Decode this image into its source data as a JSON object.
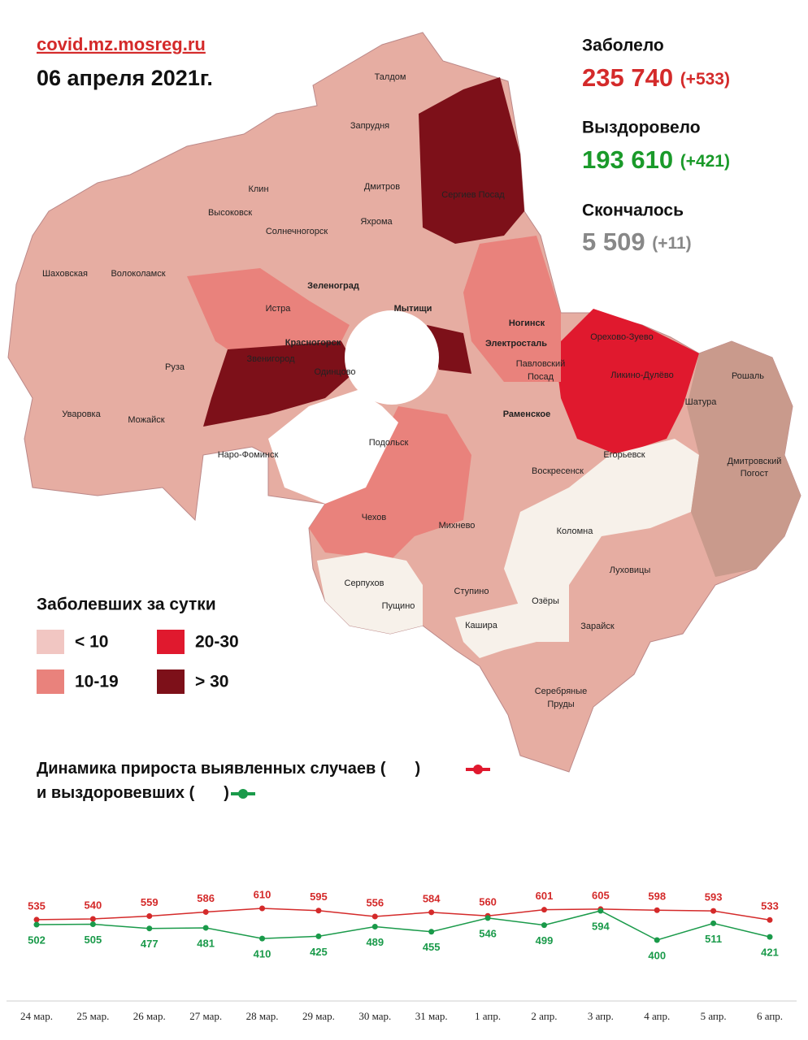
{
  "header": {
    "site": "covid.mz.mosreg.ru",
    "date": "06 апреля 2021г."
  },
  "stats": [
    {
      "label": "Заболело",
      "value": "235 740",
      "delta": "(+533)"
    },
    {
      "label": "Выздоровело",
      "value": "193 610",
      "delta": "(+421)"
    },
    {
      "label": "Скончалось",
      "value": "5 509",
      "delta": "(+11)"
    }
  ],
  "legend": {
    "title": "Заболевших за сутки",
    "items": [
      {
        "label": "< 10",
        "color": "#f1c6c2"
      },
      {
        "label": "20-30",
        "color": "#e0192e"
      },
      {
        "label": "10-19",
        "color": "#e9827c"
      },
      {
        "label": "> 30",
        "color": "#7d1019"
      }
    ]
  },
  "map_labels": [
    "Талдом",
    "Запрудня",
    "Клин",
    "Дмитров",
    "Сергиев Посад",
    "Высоковск",
    "Яхрома",
    "Солнечногорск",
    "Шаховская",
    "Волоколамск",
    "Зеленоград",
    "Истра",
    "Мытищи",
    "Ногинск",
    "Орехово-Зуево",
    "Красногорск",
    "Электросталь",
    "Павловский",
    "Посад",
    "Звенигород",
    "Одинцово",
    "Ликино-Дулёво",
    "Рошаль",
    "Руза",
    "Шатура",
    "Уваровка",
    "Раменское",
    "Можайск",
    "Подольск",
    "Егорьевск",
    "Наро-Фоминск",
    "Дмитровский",
    "Погост",
    "Воскресенск",
    "Чехов",
    "Михнево",
    "Коломна",
    "Луховицы",
    "Серпухов",
    "Пущино",
    "Ступино",
    "Озёры",
    "Кашира",
    "Зарайск",
    "Серебряные",
    "Пруды"
  ],
  "chart_data": {
    "type": "line",
    "title_line1": "Динамика прироста выявленных случаев (",
    "title_line2": "и выздоровевших (",
    "close": ")",
    "categories": [
      "24 мар.",
      "25 мар.",
      "26 мар.",
      "27 мар.",
      "28 мар.",
      "29 мар.",
      "30 мар.",
      "31 мар.",
      "1 апр.",
      "2 апр.",
      "3 апр.",
      "4 апр.",
      "5 апр.",
      "6 апр."
    ],
    "series": [
      {
        "color": "#d42a2a",
        "values": [
          535,
          540,
          559,
          586,
          610,
          595,
          556,
          584,
          560,
          601,
          605,
          598,
          593,
          533
        ]
      },
      {
        "color": "#1a9a4a",
        "values": [
          502,
          505,
          477,
          481,
          410,
          425,
          489,
          455,
          546,
          499,
          594,
          400,
          511,
          421
        ]
      }
    ]
  }
}
